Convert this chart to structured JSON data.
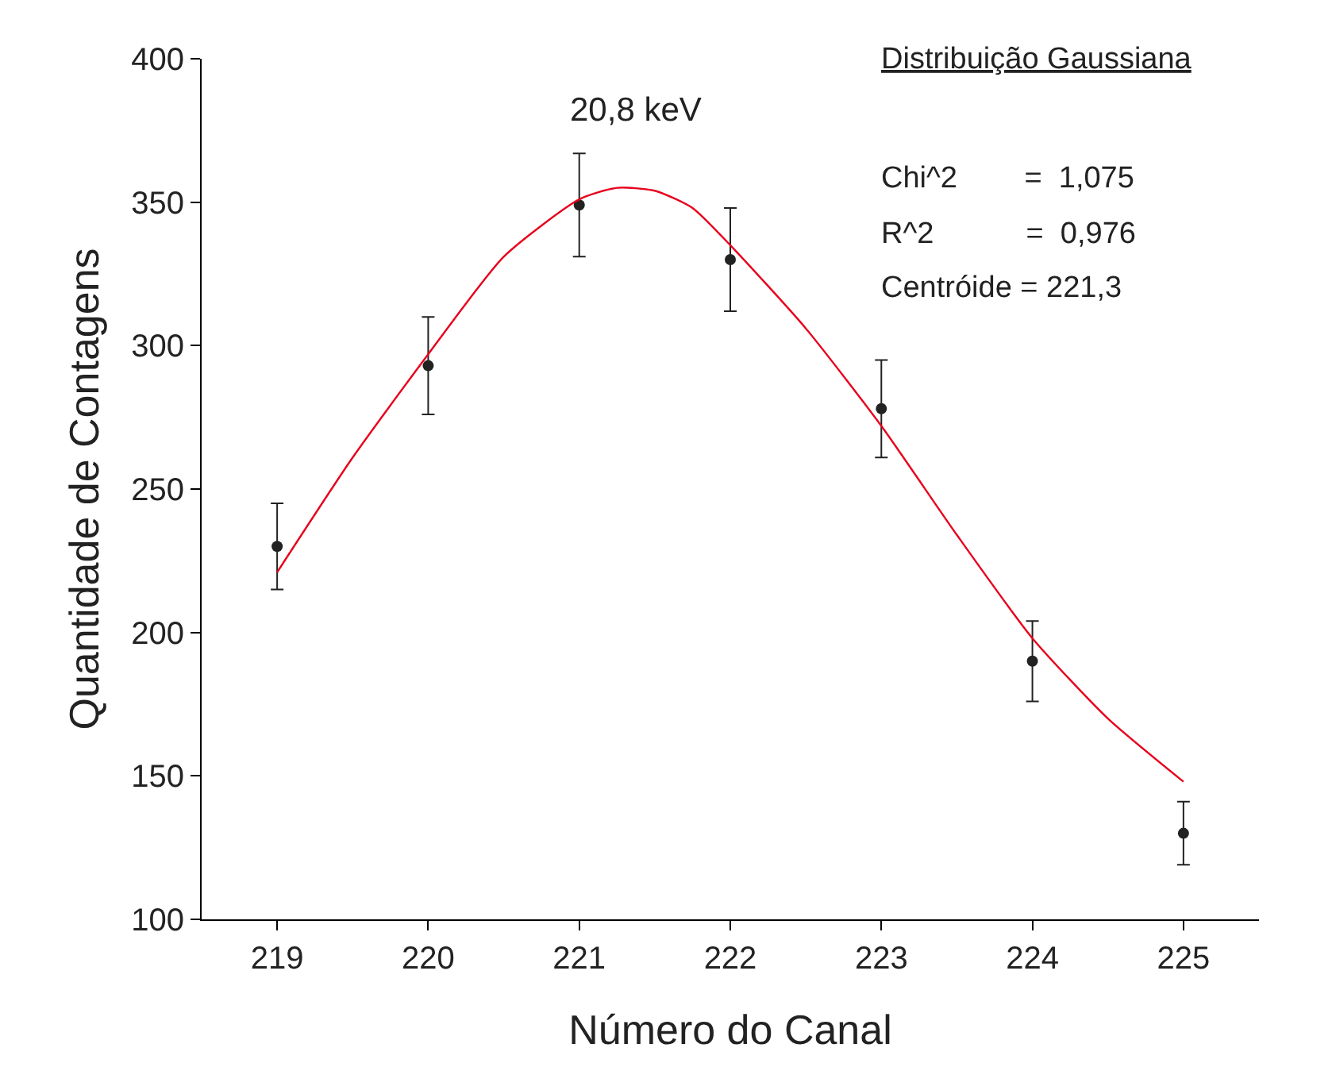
{
  "chart_data": {
    "type": "scatter",
    "xlabel": "Número do Canal",
    "ylabel": "Quantidade de Contagens",
    "x": [
      219,
      220,
      221,
      222,
      223,
      224,
      225
    ],
    "series": [
      {
        "color": "#222222",
        "marker": "circle",
        "values": [
          230,
          293,
          349,
          330,
          278,
          190,
          130
        ],
        "errors": [
          15,
          17,
          18,
          18,
          17,
          14,
          11
        ]
      },
      {
        "type": "line",
        "color": "#e8001c",
        "marker": "none",
        "line_style": "solid",
        "x": [
          219,
          219.5,
          220,
          220.5,
          221,
          221.25,
          221.5,
          221.75,
          222,
          222.5,
          223,
          223.5,
          224,
          224.5,
          225
        ],
        "values": [
          221,
          261,
          297,
          331,
          351,
          355,
          354,
          348,
          335,
          306,
          272,
          234,
          198,
          170,
          148
        ]
      }
    ],
    "xlim": [
      218.5,
      225.5
    ],
    "xticks": [
      219,
      220,
      221,
      222,
      223,
      224,
      225
    ],
    "ylim": [
      100,
      400
    ],
    "yticks": [
      100,
      150,
      200,
      250,
      300,
      350,
      400
    ],
    "annotations": [
      "20,8 keV",
      "Distribuição Gaussiana",
      "Chi^2        =  1,075",
      "R^2           =  0,976",
      "Centróide = 221,3"
    ]
  }
}
